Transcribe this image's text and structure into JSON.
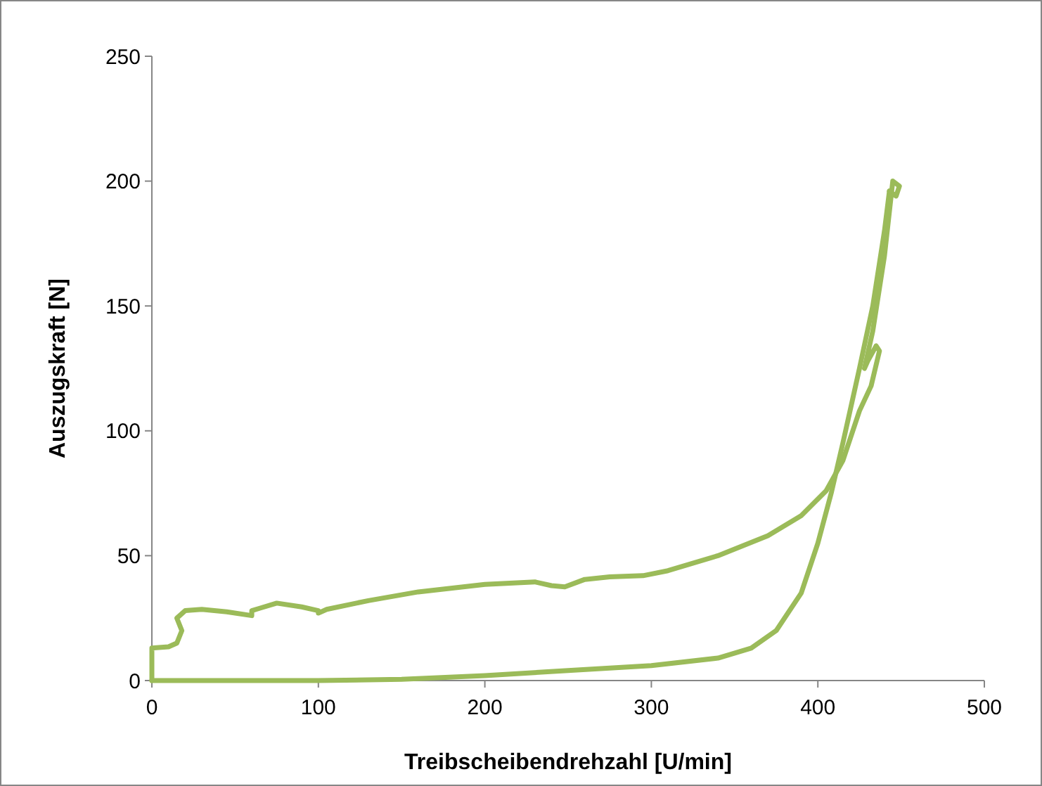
{
  "chart_data": {
    "type": "line",
    "xlabel": "Treibscheibendrehzahl [U/min]",
    "ylabel": "Auszugskraft [N]",
    "xlim": [
      0,
      500
    ],
    "xticks": [
      0,
      100,
      200,
      300,
      400,
      500
    ],
    "ylim": [
      0,
      250
    ],
    "yticks": [
      0,
      50,
      100,
      150,
      200,
      250
    ],
    "grid": false,
    "marker": "none",
    "line_style": "solid",
    "series": [
      {
        "color": "#9bbb59",
        "x": [
          0,
          0,
          10,
          15,
          18,
          15,
          20,
          30,
          45,
          60,
          60,
          65,
          75,
          90,
          100,
          100,
          105,
          130,
          160,
          200,
          230,
          240,
          248,
          260,
          275,
          295,
          310,
          340,
          370,
          390,
          405,
          415,
          425,
          432,
          437,
          435,
          430,
          428,
          433,
          440,
          445,
          449,
          447,
          443
        ],
        "values": [
          0,
          13,
          13.5,
          15,
          20,
          25,
          28,
          28.5,
          27.5,
          26,
          28,
          29,
          31,
          29.5,
          28,
          27,
          28.5,
          32,
          35.5,
          38.5,
          39.5,
          38,
          37.5,
          40.5,
          41.5,
          42,
          44,
          50,
          58,
          66,
          76,
          88,
          108,
          118,
          132,
          134,
          128,
          125,
          140,
          170,
          200,
          198,
          194,
          196
        ]
      },
      {
        "color": "#9bbb59",
        "x": [
          0,
          100,
          150,
          200,
          250,
          300,
          340,
          360,
          375,
          390,
          400,
          408,
          415,
          425,
          433,
          440,
          443
        ],
        "values": [
          0,
          0,
          0.5,
          2,
          4,
          6,
          9,
          13,
          20,
          35,
          55,
          75,
          95,
          125,
          150,
          180,
          196
        ]
      }
    ]
  }
}
